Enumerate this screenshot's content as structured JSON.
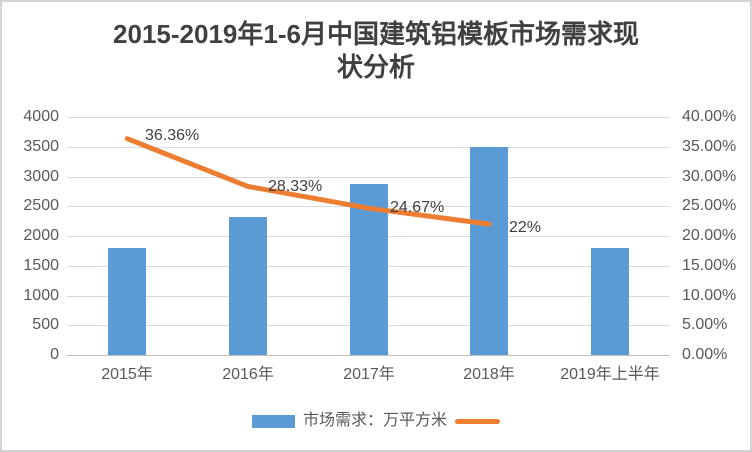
{
  "title_lines": {
    "line1": "2015-2019年1-6月中国建筑铝模板市场需求现",
    "line2": "状分析"
  },
  "chart_data": {
    "type": "bar+line combo",
    "title": "2015-2019年1-6月中国建筑铝模板市场需求现状分析",
    "categories": [
      "2015年",
      "2016年",
      "2017年",
      "2018年",
      "2019年上半年"
    ],
    "series": [
      {
        "name": "市场需求：万平方米",
        "type": "bar",
        "axis": "left",
        "color": "#5b9bd5",
        "values": [
          1800,
          2320,
          2870,
          3500,
          1800
        ]
      },
      {
        "name": "",
        "type": "line",
        "axis": "right",
        "color": "#ed7d31",
        "values": [
          36.36,
          28.33,
          24.67,
          22,
          null
        ],
        "point_labels": [
          "36.36%",
          "28.33%",
          "24.67%",
          "22%"
        ],
        "label_offsets": [
          [
            18,
            -12
          ],
          [
            20,
            -8
          ],
          [
            21,
            -9
          ],
          [
            20,
            -5
          ]
        ]
      }
    ],
    "left_axis": {
      "min": 0,
      "max": 4000,
      "step": 500,
      "ticks": [
        "0",
        "500",
        "1000",
        "1500",
        "2000",
        "2500",
        "3000",
        "3500",
        "4000"
      ]
    },
    "right_axis": {
      "min": 0,
      "max": 40,
      "step": 5,
      "ticks": [
        "0.00%",
        "5.00%",
        "10.00%",
        "15.00%",
        "20.00%",
        "25.00%",
        "30.00%",
        "35.00%",
        "40.00%"
      ]
    },
    "grid": true,
    "legend_position": "bottom",
    "colors": {
      "bar": "#5b9bd5",
      "line": "#ed7d31",
      "gridline": "#d9d9d9",
      "axis_line": "#bfbfbf",
      "axis_text": "#595959",
      "title_text": "#404040"
    }
  }
}
